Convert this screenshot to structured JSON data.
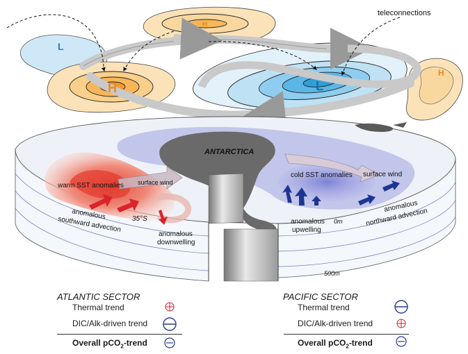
{
  "labels": {
    "teleconnections": "teleconnections",
    "antarctica": "ANTARCTICA",
    "high": "H",
    "low": "L",
    "warm_sst": "warm SST anomalies",
    "cold_sst": "cold SST anomalies",
    "surface_wind_atl": "surface wind",
    "surface_wind_pac": "surface wind",
    "southward_1": "anomalous",
    "southward_2": "southward advection",
    "downwelling_1": "anomalous",
    "downwelling_2": "downwelling",
    "upwelling_1": "anomalous",
    "upwelling_2": "upwelling",
    "northward_1": "anomalous",
    "northward_2": "northward advection",
    "lat": "35°S",
    "depth_0": "0m",
    "depth_500": "500m"
  },
  "legend": {
    "atlantic": {
      "title": "ATLANTIC SECTOR",
      "thermal": "Thermal trend",
      "dic": "DIC/Alk-driven trend",
      "overall_prefix": "Overall pCO",
      "overall_sub": "2",
      "overall_suffix": "-trend"
    },
    "pacific": {
      "title": "PACIFIC SECTOR",
      "thermal": "Thermal trend",
      "dic": "DIC/Alk-driven trend",
      "overall_prefix": "Overall pCO",
      "overall_sub": "2",
      "overall_suffix": "-trend"
    }
  },
  "colors": {
    "high_fill": "#fbe2b8",
    "high_core": "#f5a53a",
    "low_fill": "#cfe8f7",
    "low_core": "#3aa6dc",
    "warm": "#e85a4a",
    "cold": "#8c90d8",
    "land": "#666666",
    "arrow_red": "#d8242a",
    "arrow_blue": "#1e3592",
    "plus": "#cc2233",
    "minus": "#2b3a8f"
  }
}
